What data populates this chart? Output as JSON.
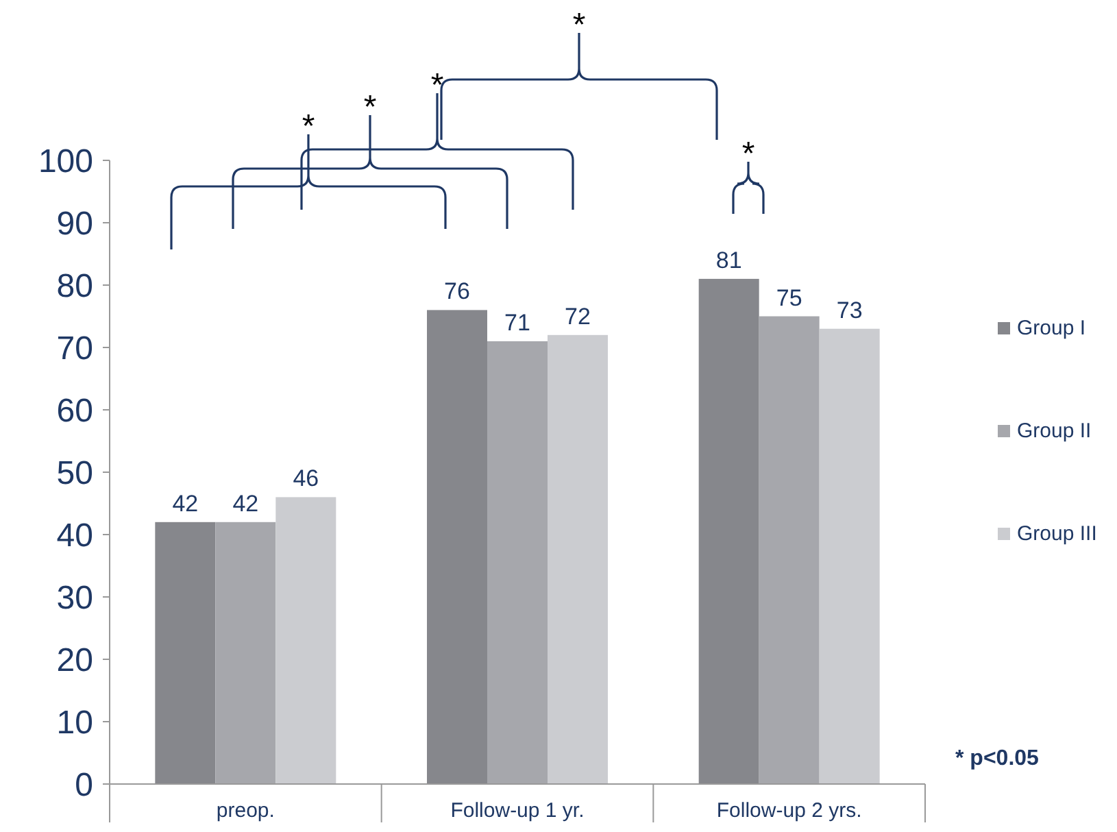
{
  "chart_data": {
    "type": "bar",
    "categories": [
      "preop.",
      "Follow-up 1 yr.",
      "Follow-up 2 yrs."
    ],
    "series": [
      {
        "name": "Group I",
        "color": "#86878c",
        "values": [
          42,
          76,
          81
        ]
      },
      {
        "name": "Group II",
        "color": "#a6a7ac",
        "values": [
          42,
          71,
          75
        ]
      },
      {
        "name": "Group III",
        "color": "#cbccd0",
        "values": [
          46,
          72,
          73
        ]
      }
    ],
    "ylim": [
      0,
      100
    ],
    "yticks": [
      0,
      10,
      20,
      30,
      40,
      50,
      60,
      70,
      80,
      90,
      100
    ],
    "data_labels": true,
    "legend": "right",
    "grid": false,
    "annotations": [
      "*",
      "*",
      "*",
      "*",
      "*",
      "* p<0.05"
    ]
  }
}
